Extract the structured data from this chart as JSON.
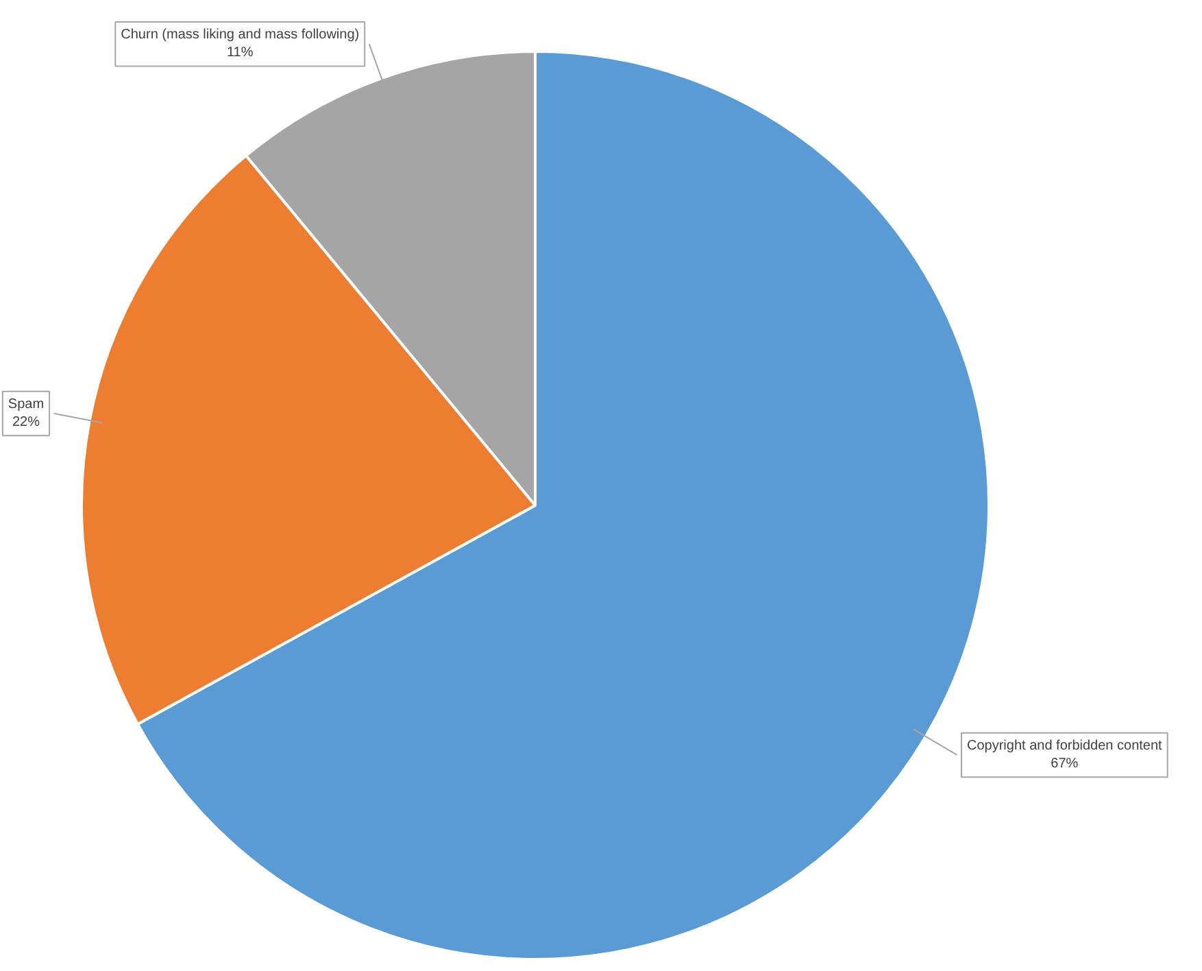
{
  "chart_data": {
    "type": "pie",
    "categories": [
      "Copyright and forbidden content",
      "Spam",
      "Churn (mass liking and mass following)"
    ],
    "values": [
      67,
      22,
      11
    ],
    "colors": [
      "#5b9bd5",
      "#ed7d31",
      "#a5a5a5"
    ],
    "value_labels": [
      "67%",
      "22%",
      "11%"
    ]
  }
}
